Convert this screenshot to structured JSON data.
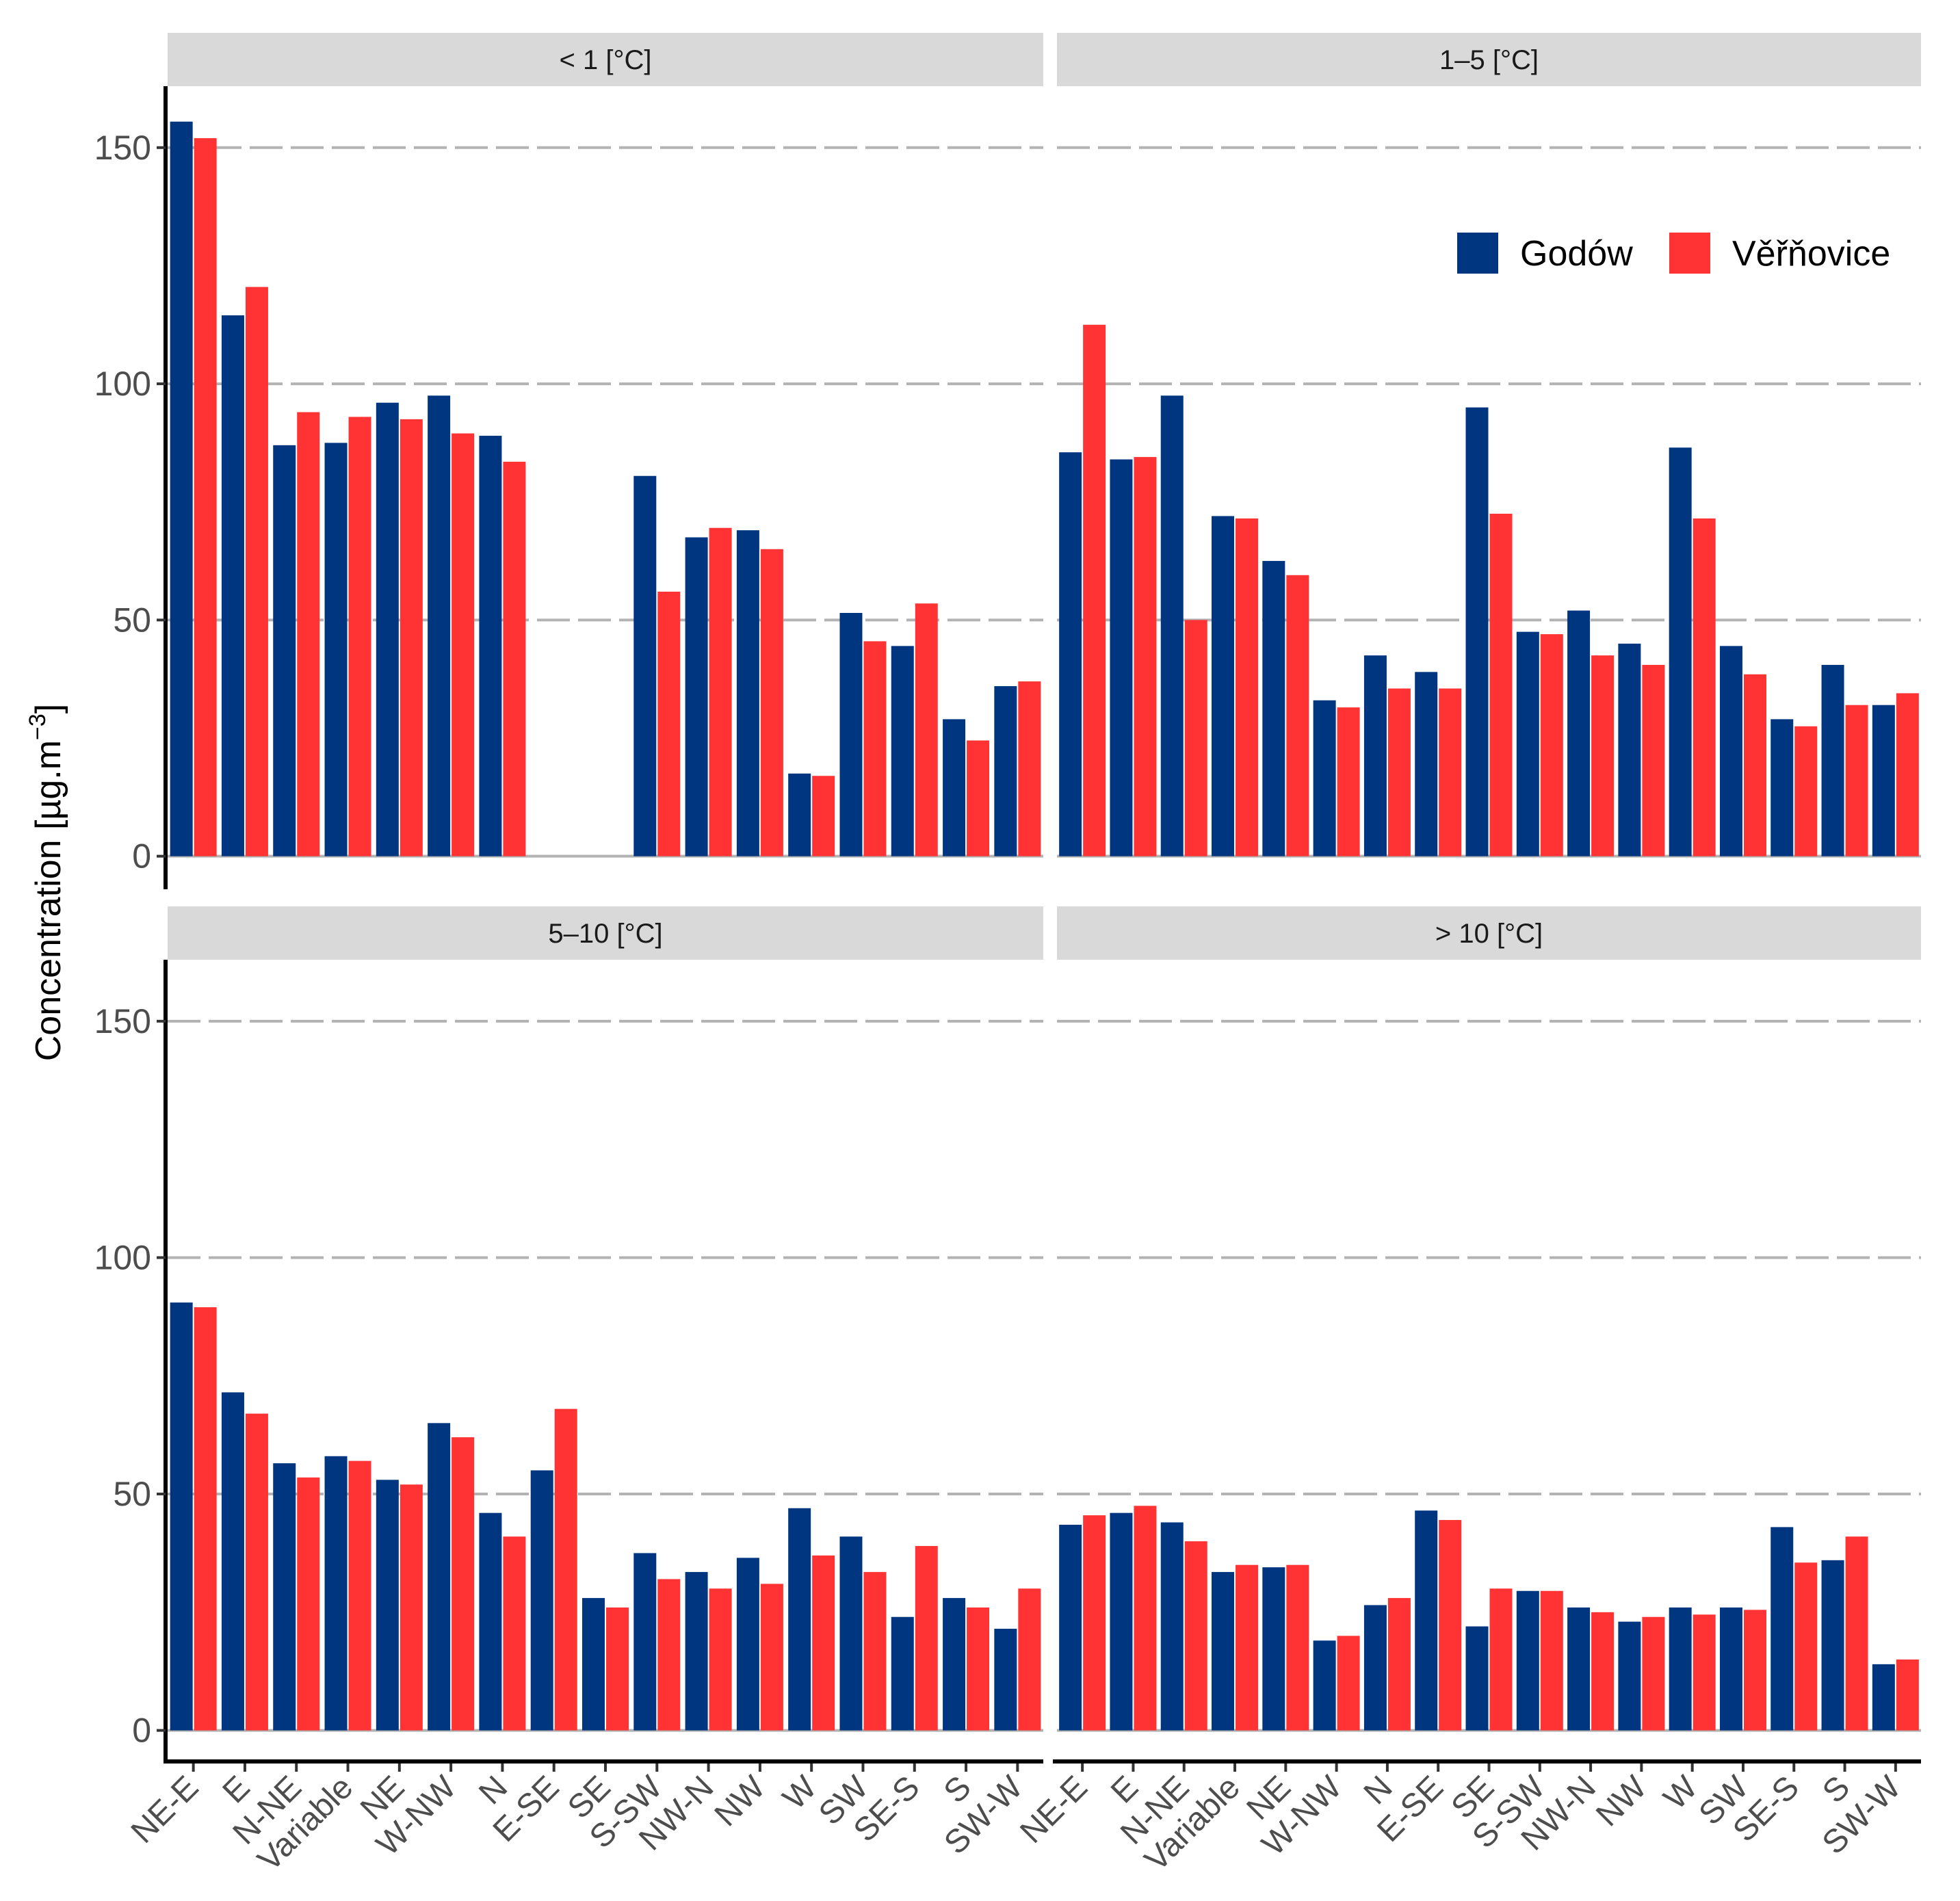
{
  "chart_data": {
    "type": "bar",
    "ylabel": "Concentration [µg.m",
    "ylabel_sup": "−3",
    "ylabel_end": "]",
    "ylim": [
      -7,
      163
    ],
    "yticks": [
      0,
      50,
      100,
      150
    ],
    "grid": "horizontal dashed",
    "legend_position": "top-right (inside 1–5 [°C] panel)",
    "legend": [
      {
        "name": "Godów",
        "color": "#003580"
      },
      {
        "name": "Věřňovice",
        "color": "#ff3333"
      }
    ],
    "categories": [
      "NE-E",
      "E",
      "N-NE",
      "Variable",
      "NE",
      "W-NW",
      "N",
      "E-SE",
      "SE",
      "S-SW",
      "NW-N",
      "NW",
      "W",
      "SW",
      "SE-S",
      "S",
      "SW-W"
    ],
    "panels": [
      {
        "title": "< 1 [°C]",
        "series": [
          {
            "name": "Godów",
            "values": [
              155.5,
              114.5,
              87,
              87.5,
              96,
              97.5,
              89,
              null,
              null,
              80.5,
              67.5,
              69,
              17.5,
              51.5,
              44.5,
              29,
              36
            ]
          },
          {
            "name": "Věřňovice",
            "values": [
              152,
              120.5,
              94,
              93,
              92.5,
              89.5,
              83.5,
              null,
              null,
              56,
              69.5,
              65,
              17,
              45.5,
              53.5,
              24.5,
              37
            ]
          }
        ]
      },
      {
        "title": "1–5 [°C]",
        "series": [
          {
            "name": "Godów",
            "values": [
              85.5,
              84,
              97.5,
              72,
              62.5,
              33,
              42.5,
              39,
              95,
              47.5,
              52,
              45,
              86.5,
              44.5,
              29,
              40.5,
              32
            ]
          },
          {
            "name": "Věřňovice",
            "values": [
              112.5,
              84.5,
              50,
              71.5,
              59.5,
              31.5,
              35.5,
              35.5,
              72.5,
              47,
              42.5,
              40.5,
              71.5,
              38.5,
              27.5,
              32,
              34.5
            ]
          }
        ]
      },
      {
        "title": "5–10 [°C]",
        "series": [
          {
            "name": "Godów",
            "values": [
              90.5,
              71.5,
              56.5,
              58,
              53,
              65,
              46,
              55,
              28,
              37.5,
              33.5,
              36.5,
              47,
              41,
              24,
              28,
              21.5
            ]
          },
          {
            "name": "Věřňovice",
            "values": [
              89.5,
              67,
              53.5,
              57,
              52,
              62,
              41,
              68,
              26,
              32,
              30,
              31,
              37,
              33.5,
              39,
              26,
              30
            ]
          }
        ]
      },
      {
        "title": "> 10 [°C]",
        "series": [
          {
            "name": "Godów",
            "values": [
              43.5,
              46,
              44,
              33.5,
              34.5,
              19,
              26.5,
              46.5,
              22,
              29.5,
              26,
              23,
              26,
              26,
              43,
              36,
              14
            ]
          },
          {
            "name": "Věřňovice",
            "values": [
              45.5,
              47.5,
              40,
              35,
              35,
              20,
              28,
              44.5,
              30,
              29.5,
              25,
              24,
              24.5,
              25.5,
              35.5,
              41,
              15
            ]
          }
        ]
      }
    ]
  }
}
